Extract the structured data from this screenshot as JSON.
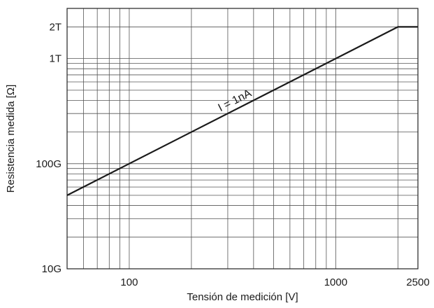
{
  "chart_data": {
    "type": "line",
    "title": "",
    "xlabel": "Tensión de medición [V]",
    "ylabel": "Resistencia medida [Ω]",
    "x_scale": "log",
    "y_scale": "log",
    "xlim": [
      50,
      2500
    ],
    "ylim": [
      10000000000,
      3000000000000
    ],
    "x_ticks": [
      {
        "value": 100,
        "label": "100"
      },
      {
        "value": 1000,
        "label": "1000"
      },
      {
        "value": 2500,
        "label": "2500"
      }
    ],
    "y_ticks": [
      {
        "value": 10000000000,
        "label": "10G"
      },
      {
        "value": 100000000000,
        "label": "100G"
      },
      {
        "value": 1000000000000,
        "label": "1T"
      },
      {
        "value": 2000000000000,
        "label": "2T"
      }
    ],
    "grid": true,
    "series": [
      {
        "name": "",
        "x": [
          50,
          2000,
          2500
        ],
        "y": [
          50000000000,
          2000000000000,
          2000000000000
        ]
      }
    ],
    "annotations": [
      {
        "text": "I = 1nA",
        "x": 330,
        "y": 330000000000
      }
    ]
  }
}
